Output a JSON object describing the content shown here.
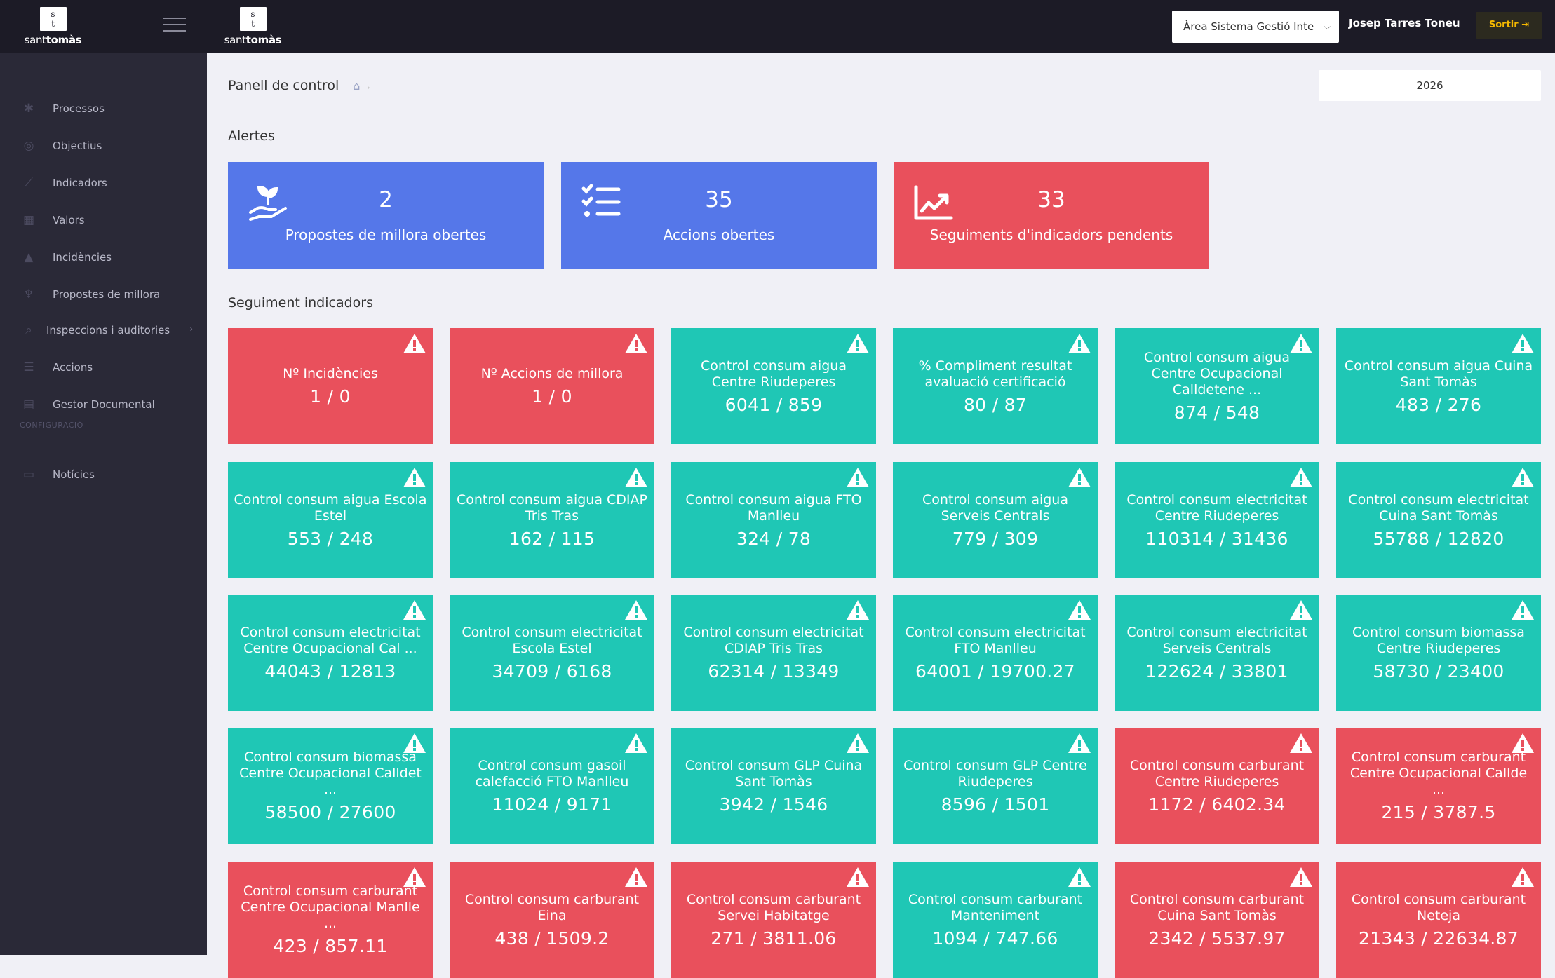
{
  "brand": {
    "box_top": "s",
    "box_bottom": "t",
    "name_light": "sant",
    "name_bold": "tomàs"
  },
  "header": {
    "area_select": "Àrea Sistema Gestió Inte",
    "user_name": "Josep Tarres Toneu",
    "logout_label": "Sortir"
  },
  "sidebar": {
    "items": [
      {
        "label": "Processos",
        "icon": "gear-icon"
      },
      {
        "label": "Objectius",
        "icon": "target-icon"
      },
      {
        "label": "Indicadors",
        "icon": "chart-icon"
      },
      {
        "label": "Valors",
        "icon": "calendar-icon"
      },
      {
        "label": "Incidències",
        "icon": "warning-icon"
      },
      {
        "label": "Propostes de millora",
        "icon": "plant-icon"
      },
      {
        "label": "Inspeccions i auditories",
        "icon": "search-icon"
      },
      {
        "label": "Accions",
        "icon": "list-icon"
      },
      {
        "label": "Gestor Documental",
        "icon": "document-icon"
      }
    ],
    "section_label": "CONFIGURACIÓ",
    "config_items": [
      {
        "label": "Notícies",
        "icon": "news-icon"
      }
    ]
  },
  "main": {
    "breadcrumb": "Panell de control",
    "year": "2026",
    "alerts_title": "Alertes",
    "alerts": [
      {
        "value": "2",
        "label": "Propostes de millora obertes",
        "color": "#5577e9",
        "icon": "plant-hand-icon"
      },
      {
        "value": "35",
        "label": "Accions obertes",
        "color": "#5577e9",
        "icon": "checklist-icon"
      },
      {
        "value": "33",
        "label": "Seguiments d'indicadors pendents",
        "color": "#e9505c",
        "icon": "trend-chart-icon"
      }
    ],
    "tracking_title": "Seguiment indicadors",
    "tiles": [
      {
        "name": "Nº Incidències",
        "value": "1 / 0",
        "status": "red"
      },
      {
        "name": "Nº Accions de millora",
        "value": "1 / 0",
        "status": "red"
      },
      {
        "name": "Control consum aigua Centre Riudeperes",
        "value": "6041 / 859",
        "status": "teal"
      },
      {
        "name": "% Compliment resultat avaluació certificació",
        "value": "80 / 87",
        "status": "teal"
      },
      {
        "name": "Control consum aigua Centre Ocupacional Calldetene ...",
        "value": "874 / 548",
        "status": "teal"
      },
      {
        "name": "Control consum aigua Cuina Sant Tomàs",
        "value": "483 / 276",
        "status": "teal"
      },
      {
        "name": "Control consum aigua Escola Estel",
        "value": "553 / 248",
        "status": "teal"
      },
      {
        "name": "Control consum aigua CDIAP Tris Tras",
        "value": "162 / 115",
        "status": "teal"
      },
      {
        "name": "Control consum aigua FTO Manlleu",
        "value": "324 / 78",
        "status": "teal"
      },
      {
        "name": "Control consum aigua Serveis Centrals",
        "value": "779 / 309",
        "status": "teal"
      },
      {
        "name": "Control consum electricitat Centre Riudeperes",
        "value": "110314 / 31436",
        "status": "teal"
      },
      {
        "name": "Control consum electricitat Cuina Sant Tomàs",
        "value": "55788 / 12820",
        "status": "teal"
      },
      {
        "name": "Control consum electricitat Centre Ocupacional Cal ...",
        "value": "44043 / 12813",
        "status": "teal"
      },
      {
        "name": "Control consum electricitat Escola Estel",
        "value": "34709 / 6168",
        "status": "teal"
      },
      {
        "name": "Control consum electricitat CDIAP Tris Tras",
        "value": "62314 / 13349",
        "status": "teal"
      },
      {
        "name": "Control consum electricitat FTO Manlleu",
        "value": "64001 / 19700.27",
        "status": "teal"
      },
      {
        "name": "Control consum electricitat Serveis Centrals",
        "value": "122624 / 33801",
        "status": "teal"
      },
      {
        "name": "Control consum biomassa Centre Riudeperes",
        "value": "58730 / 23400",
        "status": "teal"
      },
      {
        "name": "Control consum biomassa Centre Ocupacional Calldet ...",
        "value": "58500 / 27600",
        "status": "teal"
      },
      {
        "name": "Control consum gasoil calefacció FTO Manlleu",
        "value": "11024 / 9171",
        "status": "teal"
      },
      {
        "name": "Control consum GLP Cuina Sant Tomàs",
        "value": "3942 / 1546",
        "status": "teal"
      },
      {
        "name": "Control consum GLP Centre Riudeperes",
        "value": "8596 / 1501",
        "status": "teal"
      },
      {
        "name": "Control consum carburant Centre Riudeperes",
        "value": "1172 / 6402.34",
        "status": "red"
      },
      {
        "name": "Control consum carburant Centre Ocupacional Callde ...",
        "value": "215 / 3787.5",
        "status": "red"
      },
      {
        "name": "Control consum carburant Centre Ocupacional Manlle ...",
        "value": "423 / 857.11",
        "status": "red"
      },
      {
        "name": "Control consum carburant Eina",
        "value": "438 / 1509.2",
        "status": "red"
      },
      {
        "name": "Control consum carburant Servei Habitatge",
        "value": "271 / 3811.06",
        "status": "red"
      },
      {
        "name": "Control consum carburant Manteniment",
        "value": "1094 / 747.66",
        "status": "teal"
      },
      {
        "name": "Control consum carburant Cuina Sant Tomàs",
        "value": "2342 / 5537.97",
        "status": "red"
      },
      {
        "name": "Control consum carburant Neteja",
        "value": "21343 / 22634.87",
        "status": "red"
      }
    ]
  }
}
